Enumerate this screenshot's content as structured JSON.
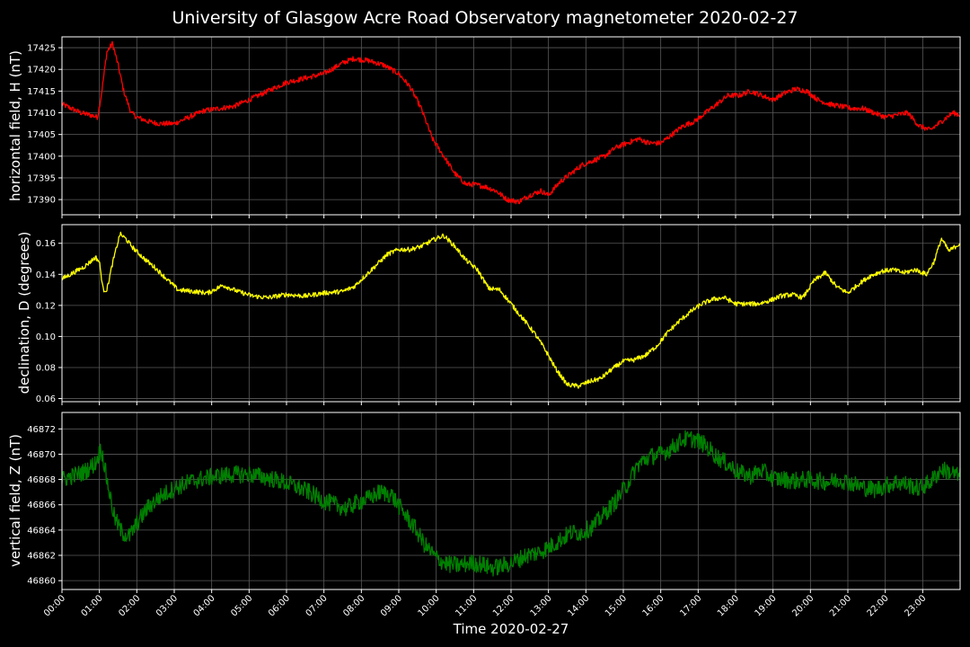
{
  "chart_data": {
    "title": "University of Glasgow Acre Road Observatory magnetometer 2020-02-27",
    "xlabel": "Time 2020-02-27",
    "x_ticks": [
      "00:00",
      "01:00",
      "02:00",
      "03:00",
      "04:00",
      "05:00",
      "06:00",
      "07:00",
      "08:00",
      "09:00",
      "10:00",
      "11:00",
      "12:00",
      "13:00",
      "14:00",
      "15:00",
      "16:00",
      "17:00",
      "18:00",
      "19:00",
      "20:00",
      "21:00",
      "22:00",
      "23:00"
    ],
    "xlim_hours": [
      0,
      24
    ],
    "grid": true,
    "panels": [
      {
        "type": "line",
        "ylabel": "horizontal field, H (nT)",
        "color": "#ff0000",
        "ylim": [
          17386.5,
          17427.5
        ],
        "yticks": [
          17390,
          17395,
          17400,
          17405,
          17410,
          17415,
          17420,
          17425
        ],
        "noise": 0.6,
        "series": [
          {
            "x": [
              0,
              0.25,
              0.5,
              0.75,
              0.95,
              1.05,
              1.2,
              1.35,
              1.5,
              1.65,
              1.85,
              2.0,
              2.3,
              2.6,
              3.0,
              3.4,
              3.8,
              4.2,
              4.6,
              5.0,
              5.5,
              6.0,
              6.5,
              7.0,
              7.5,
              7.8,
              8.2,
              8.6,
              9.0,
              9.3,
              9.6,
              9.9,
              10.2,
              10.5,
              10.8,
              11.0,
              11.3,
              11.6,
              11.9,
              12.2,
              12.5,
              12.8,
              13.0,
              13.3,
              13.6,
              13.9,
              14.2,
              14.5,
              14.8,
              15.1,
              15.4,
              15.7,
              16.0,
              16.3,
              16.6,
              16.9,
              17.2,
              17.5,
              17.8,
              18.1,
              18.4,
              18.7,
              19.0,
              19.3,
              19.6,
              19.9,
              20.2,
              20.5,
              20.8,
              21.1,
              21.4,
              21.7,
              22.0,
              22.3,
              22.6,
              22.9,
              23.2,
              23.5,
              23.8,
              24.0
            ],
            "y": [
              17412,
              17411,
              17410,
              17409.5,
              17409,
              17414,
              17424,
              17426,
              17421,
              17415,
              17410,
              17409,
              17408,
              17407.5,
              17407.5,
              17409,
              17410.5,
              17411,
              17411.5,
              17413,
              17415,
              17417,
              17418,
              17419,
              17421.5,
              17422.5,
              17422,
              17421,
              17419,
              17416,
              17411,
              17404,
              17400,
              17396,
              17393.5,
              17393.5,
              17393,
              17392,
              17390,
              17389.5,
              17391,
              17392,
              17391,
              17394,
              17396,
              17398,
              17399,
              17400,
              17402,
              17403,
              17404,
              17403,
              17403,
              17405,
              17407,
              17408,
              17410,
              17412,
              17414,
              17414,
              17415,
              17414,
              17413,
              17414.5,
              17415.5,
              17415,
              17413,
              17412,
              17411.5,
              17411,
              17411,
              17410,
              17409,
              17409.5,
              17410,
              17407,
              17406,
              17408,
              17410,
              17409.5
            ]
          }
        ]
      },
      {
        "type": "line",
        "ylabel": "declination, D (degrees)",
        "color": "#ffff00",
        "ylim": [
          0.058,
          0.172
        ],
        "yticks": [
          0.06,
          0.08,
          0.1,
          0.12,
          0.14,
          0.16
        ],
        "yticklabels": [
          "0.06",
          "0.08",
          "0.10",
          "0.12",
          "0.14",
          "0.16"
        ],
        "noise": 0.0015,
        "series": [
          {
            "x": [
              0,
              0.3,
              0.6,
              0.9,
              1.0,
              1.1,
              1.2,
              1.35,
              1.55,
              1.7,
              1.9,
              2.2,
              2.5,
              2.8,
              3.1,
              3.5,
              3.9,
              4.3,
              4.7,
              5.1,
              5.5,
              6.0,
              6.5,
              7.0,
              7.5,
              7.8,
              8.1,
              8.4,
              8.7,
              9.0,
              9.3,
              9.6,
              9.9,
              10.2,
              10.5,
              10.8,
              11.1,
              11.4,
              11.7,
              12.0,
              12.3,
              12.6,
              12.9,
              13.2,
              13.5,
              13.8,
              14.1,
              14.4,
              14.7,
              15.0,
              15.3,
              15.6,
              15.9,
              16.2,
              16.5,
              16.8,
              17.1,
              17.4,
              17.7,
              18.0,
              18.3,
              18.6,
              18.9,
              19.2,
              19.5,
              19.8,
              20.1,
              20.4,
              20.7,
              21.0,
              21.3,
              21.6,
              21.9,
              22.2,
              22.5,
              22.8,
              23.1,
              23.3,
              23.5,
              23.7,
              24.0
            ],
            "y": [
              0.137,
              0.141,
              0.145,
              0.151,
              0.148,
              0.13,
              0.13,
              0.147,
              0.166,
              0.163,
              0.157,
              0.15,
              0.144,
              0.137,
              0.13,
              0.129,
              0.128,
              0.133,
              0.129,
              0.126,
              0.125,
              0.127,
              0.126,
              0.128,
              0.129,
              0.132,
              0.139,
              0.146,
              0.153,
              0.156,
              0.156,
              0.158,
              0.162,
              0.165,
              0.158,
              0.149,
              0.143,
              0.131,
              0.13,
              0.121,
              0.112,
              0.103,
              0.092,
              0.079,
              0.069,
              0.068,
              0.071,
              0.073,
              0.079,
              0.084,
              0.085,
              0.088,
              0.094,
              0.103,
              0.11,
              0.116,
              0.121,
              0.124,
              0.125,
              0.121,
              0.121,
              0.121,
              0.123,
              0.126,
              0.127,
              0.125,
              0.136,
              0.141,
              0.132,
              0.128,
              0.134,
              0.139,
              0.142,
              0.143,
              0.141,
              0.143,
              0.14,
              0.148,
              0.163,
              0.155,
              0.16
            ]
          }
        ]
      },
      {
        "type": "line",
        "ylabel": "vertical field, Z (nT)",
        "color": "#008000",
        "ylim": [
          46859.3,
          46873.3
        ],
        "yticks": [
          46860,
          46862,
          46864,
          46866,
          46868,
          46870,
          46872
        ],
        "noise": 0.7,
        "series": [
          {
            "x": [
              0,
              0.3,
              0.6,
              0.9,
              1.05,
              1.2,
              1.4,
              1.6,
              1.8,
              2.0,
              2.3,
              2.6,
              3.0,
              3.4,
              3.8,
              4.2,
              4.6,
              5.0,
              5.4,
              5.8,
              6.2,
              6.6,
              7.0,
              7.3,
              7.6,
              7.9,
              8.2,
              8.5,
              8.8,
              9.1,
              9.4,
              9.7,
              10.0,
              10.3,
              10.6,
              10.9,
              11.2,
              11.5,
              11.8,
              12.1,
              12.4,
              12.7,
              13.0,
              13.3,
              13.6,
              13.9,
              14.2,
              14.5,
              14.8,
              15.1,
              15.4,
              15.7,
              16.0,
              16.3,
              16.6,
              16.9,
              17.2,
              17.5,
              17.8,
              18.1,
              18.4,
              18.7,
              19.0,
              19.3,
              19.6,
              19.9,
              20.2,
              20.5,
              20.8,
              21.1,
              21.4,
              21.7,
              22.0,
              22.3,
              22.6,
              22.9,
              23.2,
              23.5,
              23.8,
              24.0
            ],
            "y": [
              46868,
              46868.3,
              46868.6,
              46869.3,
              46870.5,
              46868,
              46865,
              46863.8,
              46863.5,
              46864.5,
              46865.8,
              46866.6,
              46867.3,
              46867.8,
              46868.1,
              46868.3,
              46868.4,
              46868.4,
              46868.2,
              46867.9,
              46867.5,
              46867,
              46866.3,
              46866,
              46865.7,
              46866.2,
              46866.5,
              46867,
              46866.8,
              46865.5,
              46864.3,
              46862.8,
              46861.8,
              46861.3,
              46861.2,
              46861.4,
              46861.3,
              46861,
              46861.2,
              46861.5,
              46862,
              46862.2,
              46862.6,
              46863.2,
              46863.8,
              46863.8,
              46864.3,
              46865.3,
              46866.3,
              46867.6,
              46869.2,
              46869.8,
              46870,
              46870.5,
              46871.2,
              46871.2,
              46870.7,
              46869.8,
              46869.2,
              46868.5,
              46868.3,
              46868.7,
              46868.1,
              46868,
              46867.9,
              46868,
              46867.9,
              46867.8,
              46868,
              46867.7,
              46867.4,
              46867.2,
              46867.5,
              46867.8,
              46867.6,
              46867.3,
              46867.8,
              46868.8,
              46868.5,
              46868.2
            ]
          }
        ]
      }
    ]
  }
}
